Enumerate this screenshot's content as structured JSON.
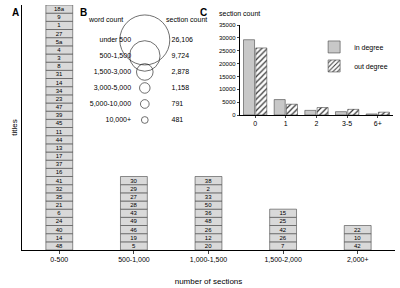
{
  "chart_data": [
    {
      "type": "bar",
      "stacked": true,
      "title": "A",
      "x_label": "number of sections",
      "y_label": "titles",
      "categories": [
        "0-500",
        "500-1,000",
        "1,000-1,500",
        "1,500-2,000",
        "2,000+"
      ],
      "values": [
        30,
        9,
        9,
        5,
        3
      ],
      "boxes": [
        [
          "48",
          "14",
          "40",
          "24",
          "6",
          "21",
          "35",
          "32",
          "41",
          "16",
          "37",
          "17",
          "13",
          "44",
          "11",
          "45",
          "39",
          "47",
          "23",
          "34",
          "14",
          "31",
          "8",
          "3",
          "4",
          "5a",
          "27",
          "1",
          "9",
          "18a"
        ],
        [
          "5",
          "19",
          "46",
          "49",
          "43",
          "28",
          "27",
          "29",
          "30"
        ],
        [
          "20",
          "12",
          "26",
          "48",
          "36",
          "50",
          "33",
          "2",
          "38"
        ],
        [
          "7",
          "26",
          "42",
          "25",
          "15"
        ],
        [
          "42",
          "10",
          "22"
        ]
      ],
      "color": "#d9d9d9",
      "data_labels": true,
      "ylim": [
        0,
        30
      ],
      "yticks": [],
      "tick_labels": "x",
      "grid": false
    },
    {
      "type": "bubble",
      "title": "B",
      "label_title": "word count",
      "value_title": "section count",
      "categories": [
        "under 500",
        "500-1,500",
        "1,500-3,000",
        "3,000-5,000",
        "5,000-10,000",
        "10,000+"
      ],
      "values": [
        26106,
        9724,
        2878,
        1158,
        791,
        481
      ],
      "value_labels": [
        "26,106",
        "9,724",
        "2,878",
        "1,158",
        "791",
        "481"
      ],
      "data_labels": true
    },
    {
      "type": "bar",
      "stacked": false,
      "title": "C",
      "y_label": "section count",
      "categories": [
        "0",
        "1",
        "2",
        "3-5",
        "6+"
      ],
      "series": [
        {
          "name": "in degree",
          "color": "#c8c8c8",
          "values": [
            29300,
            6000,
            1800,
            1300,
            400
          ]
        },
        {
          "name": "out degree",
          "color": "#ffffff",
          "marker": "hatched",
          "values": [
            26100,
            4200,
            2900,
            2200,
            1100
          ]
        }
      ],
      "ylim": [
        0,
        35000
      ],
      "yticks": [
        0,
        5000,
        10000,
        15000,
        20000,
        25000,
        30000,
        35000
      ],
      "legend": "top right",
      "grid": false
    }
  ]
}
